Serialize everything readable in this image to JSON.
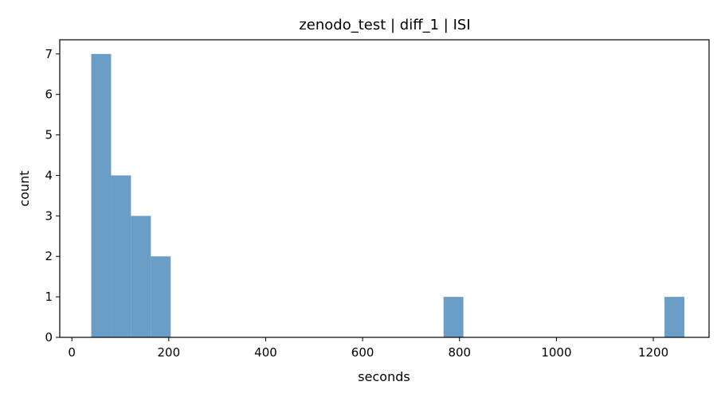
{
  "chart_data": {
    "type": "bar",
    "title": "zenodo_test | diff_1 | ISI",
    "xlabel": "seconds",
    "ylabel": "count",
    "xlim": [
      -25,
      1315
    ],
    "ylim": [
      0,
      7.35
    ],
    "xticks": [
      0,
      200,
      400,
      600,
      800,
      1000,
      1200
    ],
    "yticks": [
      0,
      1,
      2,
      3,
      4,
      5,
      6,
      7
    ],
    "bins": [
      {
        "x0": 40,
        "x1": 81,
        "count": 7
      },
      {
        "x0": 81,
        "x1": 122,
        "count": 4
      },
      {
        "x0": 122,
        "x1": 163,
        "count": 3
      },
      {
        "x0": 163,
        "x1": 204,
        "count": 2
      },
      {
        "x0": 767,
        "x1": 808,
        "count": 1
      },
      {
        "x0": 1223,
        "x1": 1264,
        "count": 1
      }
    ],
    "bar_color": "#6b9ec6",
    "grid": false,
    "legend": "none"
  }
}
